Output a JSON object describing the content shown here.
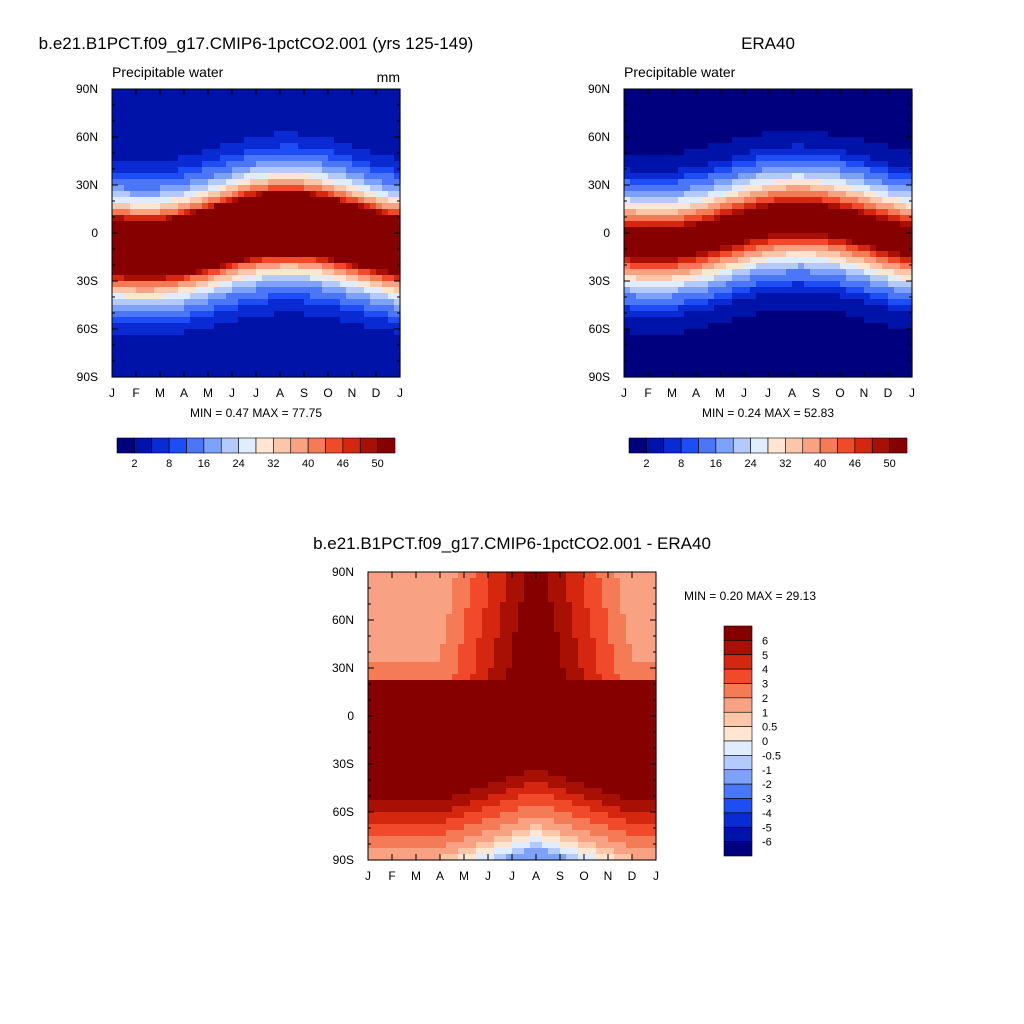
{
  "chart_data": [
    {
      "type": "heatmap",
      "title": "b.e21.B1PCT.f09_g17.CMIP6-1pctCO2.001 (yrs 125-149)",
      "subtitle": "Precipitable water",
      "units": "mm",
      "x_ticks": [
        "J",
        "F",
        "M",
        "A",
        "M",
        "J",
        "J",
        "A",
        "S",
        "O",
        "N",
        "D",
        "J"
      ],
      "y_ticks": [
        "90N",
        "60N",
        "30N",
        "0",
        "30S",
        "60S",
        "90S"
      ],
      "stats": "MIN =   0.47 MAX =  77.75",
      "field": "model"
    },
    {
      "type": "heatmap",
      "title": "ERA40",
      "subtitle": "Precipitable water",
      "x_ticks": [
        "J",
        "F",
        "M",
        "A",
        "M",
        "J",
        "J",
        "A",
        "S",
        "O",
        "N",
        "D",
        "J"
      ],
      "y_ticks": [
        "90N",
        "60N",
        "30N",
        "0",
        "30S",
        "60S",
        "90S"
      ],
      "stats": "MIN =   0.24 MAX =  52.83",
      "field": "obs"
    },
    {
      "type": "heatmap",
      "title": "b.e21.B1PCT.f09_g17.CMIP6-1pctCO2.001 - ERA40",
      "x_ticks": [
        "J",
        "F",
        "M",
        "A",
        "M",
        "J",
        "J",
        "A",
        "S",
        "O",
        "N",
        "D",
        "J"
      ],
      "y_ticks": [
        "90N",
        "60N",
        "30N",
        "0",
        "30S",
        "60S",
        "90S"
      ],
      "stats": "MIN =   0.20 MAX =  29.13",
      "field": "diff"
    }
  ],
  "colorbar_abs": {
    "labels": [
      "2",
      "8",
      "16",
      "24",
      "32",
      "40",
      "46",
      "50"
    ],
    "levels": [
      2,
      4,
      6,
      8,
      12,
      16,
      20,
      24,
      28,
      32,
      36,
      40,
      43,
      46,
      48,
      50
    ],
    "colors": [
      "#00007f",
      "#0013a8",
      "#0a2ad4",
      "#1f4df5",
      "#4a76f7",
      "#7ea2fa",
      "#b4cafc",
      "#e0ecff",
      "#ffe6d2",
      "#fcc6a8",
      "#f9a283",
      "#f57a56",
      "#f04a2b",
      "#d5260f",
      "#a80f05",
      "#870000"
    ]
  },
  "colorbar_diff": {
    "labels": [
      "6",
      "5",
      "4",
      "3",
      "2",
      "1",
      "0.5",
      "0",
      "-0.5",
      "-1",
      "-2",
      "-3",
      "-4",
      "-5",
      "-6"
    ],
    "levels": [
      -6,
      -5,
      -4,
      -3,
      -2,
      -1,
      -0.5,
      0,
      0.5,
      1,
      2,
      3,
      4,
      5,
      6
    ],
    "colors": [
      "#00007f",
      "#0013a8",
      "#0a2ad4",
      "#1f4df5",
      "#4a76f7",
      "#7ea2fa",
      "#b4cafc",
      "#e0ecff",
      "#ffe6d2",
      "#fcc6a8",
      "#f9a283",
      "#f57a56",
      "#f04a2b",
      "#d5260f",
      "#a80f05",
      "#870000"
    ]
  }
}
